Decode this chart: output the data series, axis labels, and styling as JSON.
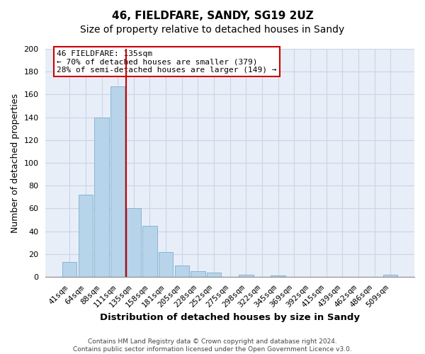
{
  "title": "46, FIELDFARE, SANDY, SG19 2UZ",
  "subtitle": "Size of property relative to detached houses in Sandy",
  "xlabel": "Distribution of detached houses by size in Sandy",
  "ylabel": "Number of detached properties",
  "bar_labels": [
    "41sqm",
    "64sqm",
    "88sqm",
    "111sqm",
    "135sqm",
    "158sqm",
    "181sqm",
    "205sqm",
    "228sqm",
    "252sqm",
    "275sqm",
    "298sqm",
    "322sqm",
    "345sqm",
    "369sqm",
    "392sqm",
    "415sqm",
    "439sqm",
    "462sqm",
    "486sqm",
    "509sqm"
  ],
  "bar_values": [
    13,
    72,
    140,
    167,
    60,
    45,
    22,
    10,
    5,
    4,
    0,
    2,
    0,
    1,
    0,
    0,
    0,
    0,
    0,
    0,
    2
  ],
  "bar_color": "#b8d4ea",
  "bar_edge_color": "#7aaed0",
  "vline_color": "#cc0000",
  "vline_bar_index": 3,
  "ylim": [
    0,
    200
  ],
  "yticks": [
    0,
    20,
    40,
    60,
    80,
    100,
    120,
    140,
    160,
    180,
    200
  ],
  "annotation_box_text": "46 FIELDFARE: 135sqm\n← 70% of detached houses are smaller (379)\n28% of semi-detached houses are larger (149) →",
  "footer_line1": "Contains HM Land Registry data © Crown copyright and database right 2024.",
  "footer_line2": "Contains public sector information licensed under the Open Government Licence v3.0.",
  "background_color": "#e8eef8",
  "grid_color": "#c8d4e8",
  "title_fontsize": 11,
  "xlabel_fontsize": 9.5,
  "ylabel_fontsize": 9,
  "tick_fontsize": 8,
  "annotation_fontsize": 8,
  "footer_fontsize": 6.5
}
